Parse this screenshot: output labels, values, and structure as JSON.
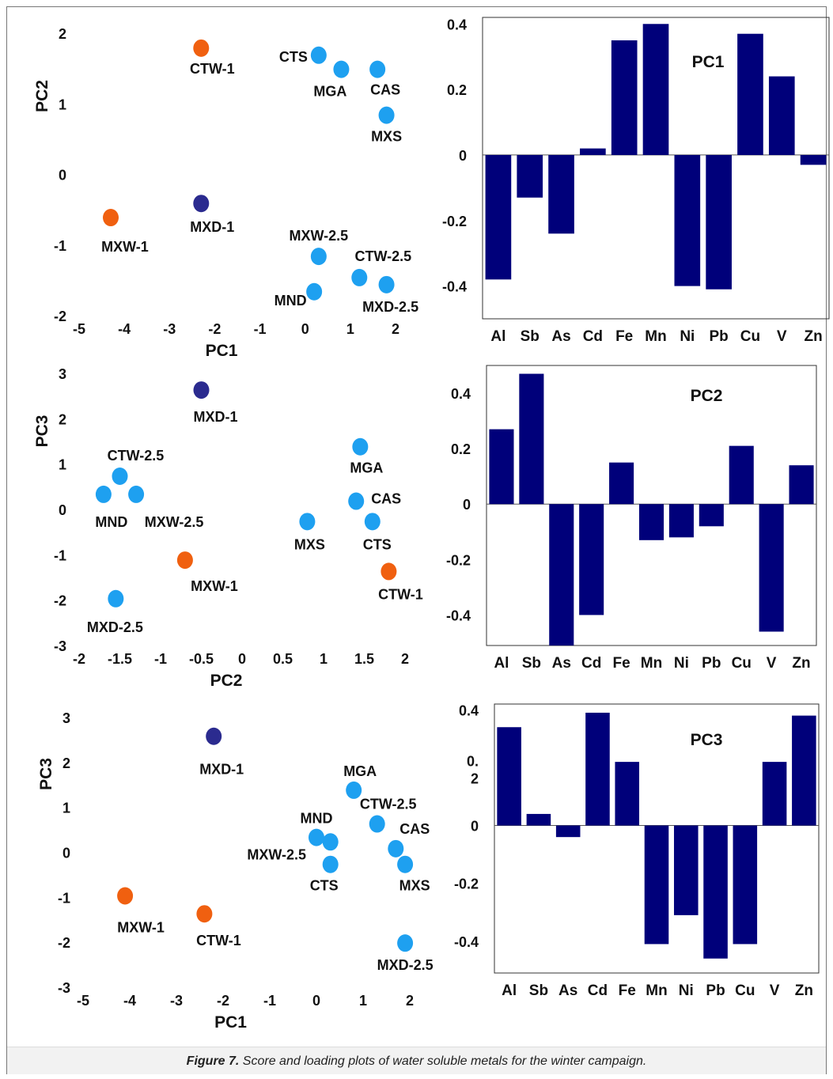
{
  "colors": {
    "dark_blue": "#2b2b8f",
    "light_blue": "#1ea0f0",
    "orange": "#f06010",
    "bar": "#00007a"
  },
  "caption": {
    "label": "Figure 7.",
    "text": " Score and loading plots of water soluble metals for the winter campaign."
  },
  "chart_data": [
    {
      "type": "scatter",
      "title": "",
      "xlabel": "PC1",
      "ylabel": "PC2",
      "xlim": [
        -5,
        2
      ],
      "ylim": [
        -2,
        2
      ],
      "xticks": [
        -5,
        -4,
        -3,
        -2,
        -1,
        0,
        1,
        2
      ],
      "yticks": [
        -2,
        -1,
        0,
        1,
        2
      ],
      "points": [
        {
          "label": "CTW-1",
          "x": -2.3,
          "y": 1.8,
          "color": "orange"
        },
        {
          "label": "CTS",
          "x": 0.3,
          "y": 1.7,
          "color": "light_blue"
        },
        {
          "label": "MGA",
          "x": 0.8,
          "y": 1.5,
          "color": "light_blue"
        },
        {
          "label": "CAS",
          "x": 1.6,
          "y": 1.5,
          "color": "light_blue"
        },
        {
          "label": "MXS",
          "x": 1.8,
          "y": 0.85,
          "color": "light_blue"
        },
        {
          "label": "MXW-1",
          "x": -4.3,
          "y": -0.6,
          "color": "orange"
        },
        {
          "label": "MXD-1",
          "x": -2.3,
          "y": -0.4,
          "color": "dark_blue"
        },
        {
          "label": "MXW-2.5",
          "x": 0.3,
          "y": -1.15,
          "color": "light_blue"
        },
        {
          "label": "CTW-2.5",
          "x": 1.2,
          "y": -1.45,
          "color": "light_blue"
        },
        {
          "label": "MXD-2.5",
          "x": 1.8,
          "y": -1.55,
          "color": "light_blue"
        },
        {
          "label": "MND",
          "x": 0.2,
          "y": -1.65,
          "color": "light_blue"
        }
      ]
    },
    {
      "type": "bar",
      "title": "PC1",
      "categories": [
        "Al",
        "Sb",
        "As",
        "Cd",
        "Fe",
        "Mn",
        "Ni",
        "Pb",
        "Cu",
        "V",
        "Zn"
      ],
      "values": [
        -0.38,
        -0.13,
        -0.24,
        0.02,
        0.35,
        0.4,
        -0.4,
        -0.41,
        0.37,
        0.24,
        -0.03
      ],
      "ylim": [
        -0.5,
        0.42
      ],
      "yticks": [
        "0.4",
        "0.2",
        "0",
        "-0.2",
        "-0.4"
      ]
    },
    {
      "type": "scatter",
      "title": "",
      "xlabel": "PC2",
      "ylabel": "PC3",
      "xlim": [
        -2,
        2
      ],
      "ylim": [
        -3,
        3
      ],
      "xticks": [
        "-2",
        "-1.5",
        "-1",
        "-0.5",
        "0",
        "0.5",
        "1",
        "1.5",
        "2"
      ],
      "yticks": [
        -3,
        -2,
        -1,
        0,
        1,
        2,
        3
      ],
      "points": [
        {
          "label": "MXD-1",
          "x": -0.5,
          "y": 2.65,
          "color": "dark_blue"
        },
        {
          "label": "MGA",
          "x": 1.45,
          "y": 1.4,
          "color": "light_blue"
        },
        {
          "label": "CTW-2.5",
          "x": -1.5,
          "y": 0.75,
          "color": "light_blue"
        },
        {
          "label": "MND",
          "x": -1.7,
          "y": 0.35,
          "color": "light_blue"
        },
        {
          "label": "MXW-2.5",
          "x": -1.3,
          "y": 0.35,
          "color": "light_blue"
        },
        {
          "label": "CAS",
          "x": 1.4,
          "y": 0.2,
          "color": "light_blue"
        },
        {
          "label": "MXS",
          "x": 0.8,
          "y": -0.25,
          "color": "light_blue"
        },
        {
          "label": "CTS",
          "x": 1.6,
          "y": -0.25,
          "color": "light_blue"
        },
        {
          "label": "MXW-1",
          "x": -0.7,
          "y": -1.1,
          "color": "orange"
        },
        {
          "label": "CTW-1",
          "x": 1.8,
          "y": -1.35,
          "color": "orange"
        },
        {
          "label": "MXD-2.5",
          "x": -1.55,
          "y": -1.95,
          "color": "light_blue"
        }
      ]
    },
    {
      "type": "bar",
      "title": "PC2",
      "categories": [
        "Al",
        "Sb",
        "As",
        "Cd",
        "Fe",
        "Mn",
        "Ni",
        "Pb",
        "Cu",
        "V",
        "Zn"
      ],
      "values": [
        0.27,
        0.47,
        -0.51,
        -0.4,
        0.15,
        -0.13,
        -0.12,
        -0.08,
        0.21,
        -0.46,
        0.14
      ],
      "ylim": [
        -0.51,
        0.5
      ],
      "yticks": [
        "0.4",
        "0.2",
        "0",
        "-0.2",
        "-0.4"
      ]
    },
    {
      "type": "scatter",
      "title": "",
      "xlabel": "PC1",
      "ylabel": "PC3",
      "xlim": [
        -5,
        2
      ],
      "ylim": [
        -3,
        3
      ],
      "xticks": [
        -5,
        -4,
        -3,
        -2,
        -1,
        0,
        1,
        2
      ],
      "yticks": [
        -3,
        -2,
        -1,
        0,
        1,
        2,
        3
      ],
      "points": [
        {
          "label": "MXD-1",
          "x": -2.2,
          "y": 2.6,
          "color": "dark_blue"
        },
        {
          "label": "MGA",
          "x": 0.8,
          "y": 1.4,
          "color": "light_blue"
        },
        {
          "label": "CTW-2.5",
          "x": 1.3,
          "y": 0.65,
          "color": "light_blue"
        },
        {
          "label": "MND",
          "x": 0.0,
          "y": 0.35,
          "color": "light_blue"
        },
        {
          "label": "MXW-2.5",
          "x": 0.3,
          "y": 0.25,
          "color": "light_blue"
        },
        {
          "label": "CAS",
          "x": 1.7,
          "y": 0.1,
          "color": "light_blue"
        },
        {
          "label": "CTS",
          "x": 0.3,
          "y": -0.25,
          "color": "light_blue"
        },
        {
          "label": "MXS",
          "x": 1.9,
          "y": -0.25,
          "color": "light_blue"
        },
        {
          "label": "MXW-1",
          "x": -4.1,
          "y": -0.95,
          "color": "orange"
        },
        {
          "label": "CTW-1",
          "x": -2.4,
          "y": -1.35,
          "color": "orange"
        },
        {
          "label": "MXD-2.5",
          "x": 1.9,
          "y": -2.0,
          "color": "light_blue"
        }
      ]
    },
    {
      "type": "bar",
      "title": "PC3",
      "categories": [
        "Al",
        "Sb",
        "As",
        "Cd",
        "Fe",
        "Mn",
        "Ni",
        "Pb",
        "Cu",
        "V",
        "Zn"
      ],
      "values": [
        0.34,
        0.04,
        -0.04,
        0.39,
        0.22,
        -0.41,
        -0.31,
        -0.46,
        -0.41,
        0.22,
        0.38
      ],
      "ylim": [
        -0.51,
        0.42
      ],
      "yticks": [
        "0.4",
        "0.\n2",
        "0",
        "-0.2",
        "-0.4"
      ]
    }
  ]
}
